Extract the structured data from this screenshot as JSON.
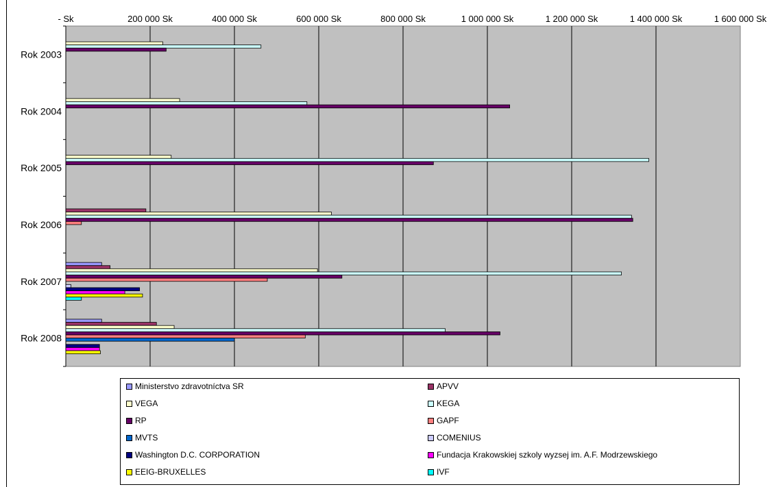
{
  "chart_data": {
    "type": "bar",
    "orientation": "horizontal",
    "categories": [
      "Rok 2003",
      "Rok 2004",
      "Rok 2005",
      "Rok 2006",
      "Rok 2007",
      "Rok 2008"
    ],
    "x_tick_labels": [
      "- Sk",
      "200 000 Sk",
      "400 000 Sk",
      "600 000 Sk",
      "800 000 Sk",
      "1 000 000 Sk",
      "1 200 000 Sk",
      "1 400 000 Sk",
      "1 600 000 Sk"
    ],
    "xlim": [
      0,
      1600000
    ],
    "grid": true,
    "plot_background": "#c0c0c0",
    "legend_position": "bottom",
    "series": [
      {
        "name": "Ministerstvo zdravotníctva SR",
        "color": "#9999ff",
        "values": [
          0,
          0,
          0,
          0,
          85000,
          85000
        ]
      },
      {
        "name": "APVV",
        "color": "#993366",
        "values": [
          0,
          0,
          0,
          190000,
          105000,
          215000
        ]
      },
      {
        "name": "VEGA",
        "color": "#ffffcc",
        "values": [
          230000,
          270000,
          250000,
          630000,
          597000,
          257000
        ]
      },
      {
        "name": "KEGA",
        "color": "#ccffff",
        "values": [
          463000,
          572000,
          1383000,
          1342000,
          1318000,
          900000
        ]
      },
      {
        "name": "RP",
        "color": "#660066",
        "values": [
          238000,
          1053000,
          872000,
          1345000,
          655000,
          1030000
        ]
      },
      {
        "name": "GAPF",
        "color": "#ff8080",
        "values": [
          0,
          0,
          0,
          37000,
          478000,
          568000
        ]
      },
      {
        "name": "MVTS",
        "color": "#0066cc",
        "values": [
          0,
          0,
          0,
          0,
          0,
          400000
        ]
      },
      {
        "name": "COMENIUS",
        "color": "#ccccff",
        "values": [
          0,
          0,
          0,
          0,
          12000,
          0
        ]
      },
      {
        "name": "Washington D.C. CORPORATION",
        "color": "#000080",
        "values": [
          0,
          0,
          0,
          0,
          175000,
          80000
        ]
      },
      {
        "name": "Fundacja Krakowskiej szkoly wyzsej im. A.F. Modrzewskiego",
        "color": "#ff00ff",
        "values": [
          0,
          0,
          0,
          0,
          140000,
          80000
        ]
      },
      {
        "name": "EEIG-BRUXELLES",
        "color": "#ffff00",
        "values": [
          0,
          0,
          0,
          0,
          182000,
          82000
        ]
      },
      {
        "name": "IVF",
        "color": "#00ffff",
        "values": [
          0,
          0,
          0,
          0,
          37000,
          0
        ]
      }
    ]
  },
  "legend": {
    "items": [
      {
        "label": "Ministerstvo zdravotníctva SR",
        "color": "#9999ff"
      },
      {
        "label": "APVV",
        "color": "#993366"
      },
      {
        "label": "VEGA",
        "color": "#ffffcc"
      },
      {
        "label": "KEGA",
        "color": "#ccffff"
      },
      {
        "label": "RP",
        "color": "#660066"
      },
      {
        "label": "GAPF",
        "color": "#ff8080"
      },
      {
        "label": "MVTS",
        "color": "#0066cc"
      },
      {
        "label": "COMENIUS",
        "color": "#ccccff"
      },
      {
        "label": "Washington D.C. CORPORATION",
        "color": "#000080"
      },
      {
        "label": "Fundacja Krakowskiej szkoly wyzsej im. A.F. Modrzewskiego",
        "color": "#ff00ff"
      },
      {
        "label": "EEIG-BRUXELLES",
        "color": "#ffff00"
      },
      {
        "label": "IVF",
        "color": "#00ffff"
      }
    ]
  }
}
